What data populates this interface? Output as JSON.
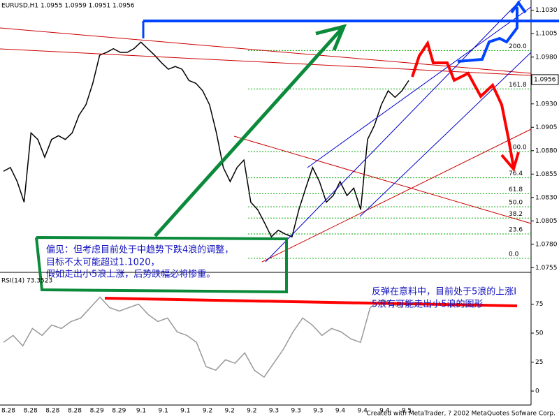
{
  "chart_data": [
    {
      "type": "line",
      "title": "EURUSD,H1  1.0955 1.0959 1.0951 1.0956",
      "color": "#000000",
      "x_labels": [
        "8.28",
        "8.28",
        "8.28",
        "8.28",
        "8.29",
        "8.29",
        "9.1",
        "9.1",
        "9.1",
        "9.2",
        "9.2",
        "9.2",
        "9.3",
        "9.3",
        "9.3",
        "9.4",
        "9.4",
        "9.4",
        "9.5"
      ],
      "values": [
        1.0858,
        1.0862,
        1.0847,
        1.0825,
        1.0899,
        1.0892,
        1.0873,
        1.0892,
        1.0896,
        1.0892,
        1.0899,
        1.0918,
        1.0929,
        1.0952,
        1.0982,
        1.0985,
        1.0989,
        1.0985,
        1.0985,
        1.0989,
        1.0996,
        1.0989,
        1.0982,
        1.0974,
        1.0967,
        1.097,
        1.0967,
        1.0955,
        1.0952,
        1.0944,
        1.0929,
        1.0899,
        1.0862,
        1.0847,
        1.0862,
        1.087,
        1.0825,
        1.0817,
        1.0803,
        1.0788,
        1.0795,
        1.0791,
        1.0788,
        1.0817,
        1.084,
        1.0862,
        1.0847,
        1.0825,
        1.0832,
        1.0847,
        1.0832,
        1.084,
        1.0817,
        1.0892,
        1.0907,
        1.0929,
        1.0944,
        1.0937,
        1.0944,
        1.0955
      ],
      "ylim": [
        1.075,
        1.1041
      ],
      "yticks": [
        {
          "value": 1.103,
          "label": "1.1030"
        },
        {
          "value": 1.1005,
          "label": "1.1005"
        },
        {
          "value": 1.098,
          "label": "1.0980"
        },
        {
          "value": 1.093,
          "label": "1.0930"
        },
        {
          "value": 1.0905,
          "label": "1.0905"
        },
        {
          "value": 1.088,
          "label": "1.0880"
        },
        {
          "value": 1.0855,
          "label": "1.0855"
        },
        {
          "value": 1.083,
          "label": "1.0830"
        },
        {
          "value": 1.0805,
          "label": "1.0805"
        },
        {
          "value": 1.078,
          "label": "1.0780"
        },
        {
          "value": 1.0755,
          "label": "1.0755"
        }
      ],
      "current_price": {
        "value": 1.0956,
        "label": "1.0956"
      },
      "fib_levels": [
        {
          "label": "200.0",
          "price": 1.0987
        },
        {
          "label": "161.8",
          "price": 1.0946
        },
        {
          "label": "100.0",
          "price": 1.0879
        },
        {
          "label": "76.4",
          "price": 1.0851
        },
        {
          "label": "61.8",
          "price": 1.0834
        },
        {
          "label": "50.0",
          "price": 1.082
        },
        {
          "label": "38.2",
          "price": 1.0808
        },
        {
          "label": "23.6",
          "price": 1.0791
        },
        {
          "label": "0.0",
          "price": 1.0765
        }
      ]
    },
    {
      "type": "line",
      "title": "RSI(14) 73.3523",
      "color": "#999999",
      "values": [
        42,
        48,
        39,
        54,
        48,
        57,
        54,
        60,
        63,
        72,
        81,
        72,
        69,
        72,
        75,
        66,
        60,
        63,
        51,
        48,
        42,
        21,
        18,
        27,
        24,
        33,
        18,
        12,
        24,
        36,
        51,
        63,
        57,
        48,
        54,
        51,
        45,
        42,
        72,
        78,
        77,
        72,
        78
      ],
      "ylim": [
        0,
        100
      ],
      "yticks": [
        0,
        25,
        50,
        75
      ]
    }
  ],
  "annotations": {
    "green": [
      "偏见：但考虑目前处于中趋势下跌4浪的调整，",
      "目标不太可能超过1.1020，",
      "假如走出小5浪上涨，后势跌幅必将惨重。"
    ],
    "blue": [
      "反弹在意料中，目前处于5浪的上涨I",
      "5浪有可能走出小5浪的图形"
    ]
  },
  "footer": "Created with MetaTrader, ? 2002 MetaQuotes Sofware Corp."
}
